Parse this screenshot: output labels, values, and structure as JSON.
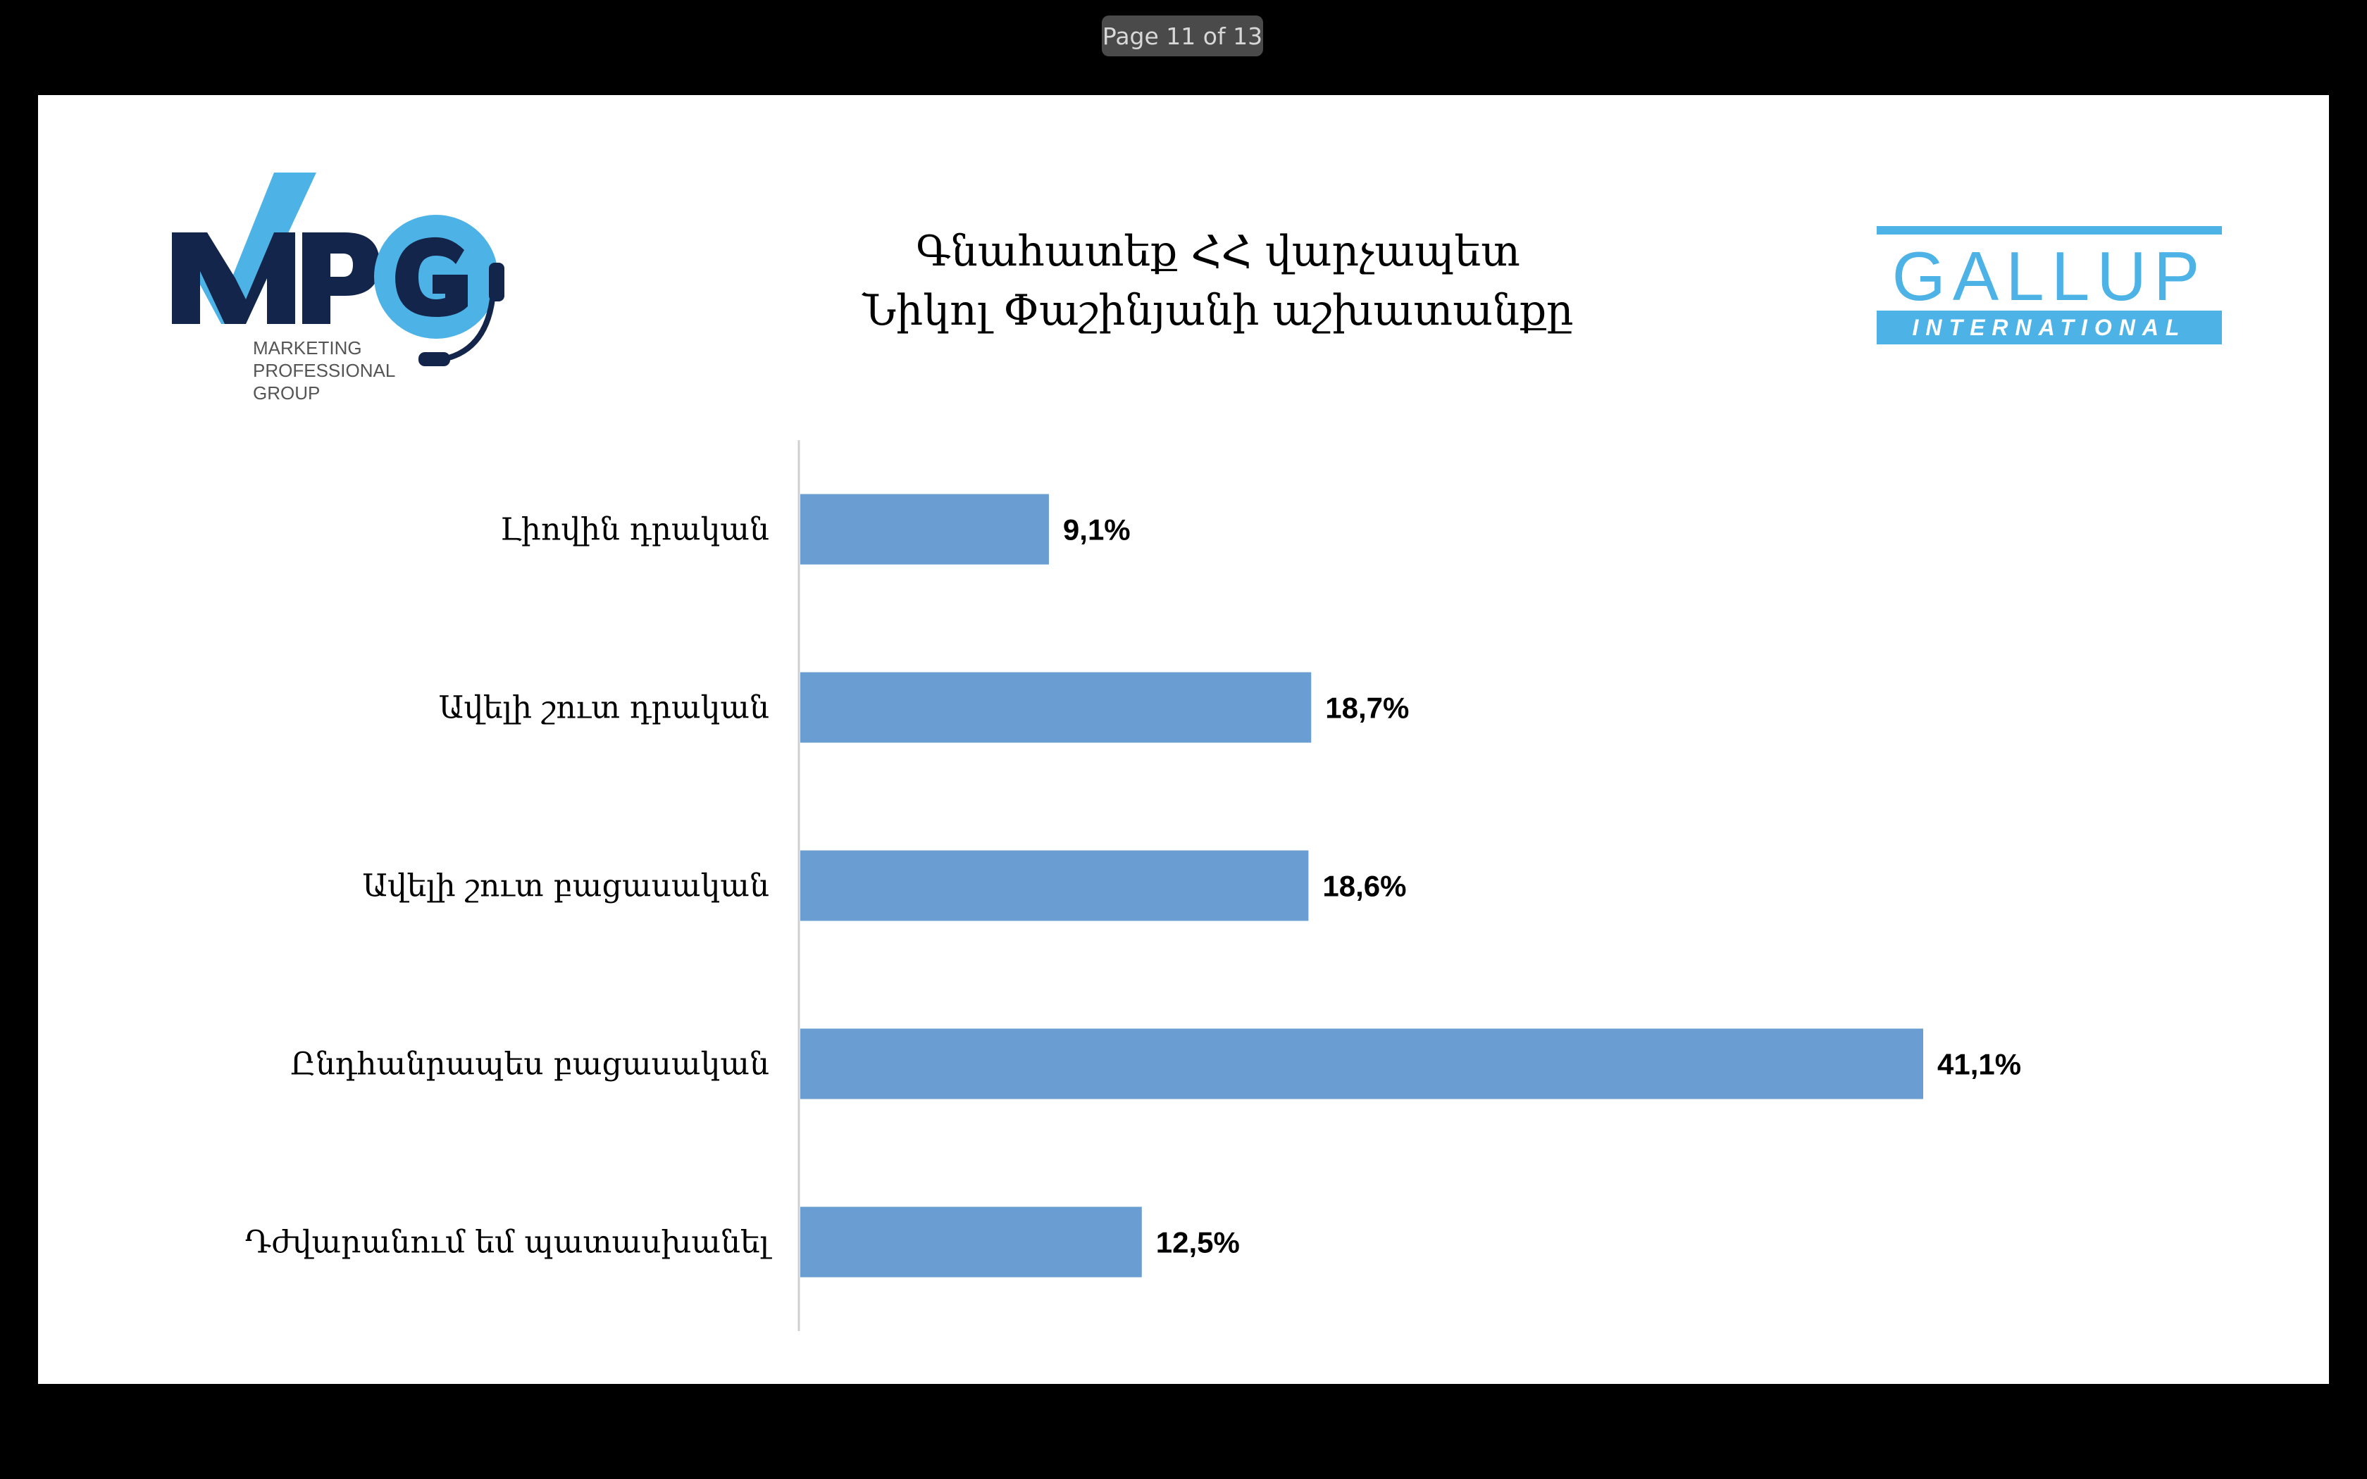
{
  "viewer": {
    "page_indicator": "Page 11 of 13"
  },
  "slide": {
    "title_line1": "Գնահատեք ՀՀ վարչապետ",
    "title_line2": "Նիկոլ Փաշինյանի աշխատանքը",
    "logo_left": {
      "text": "MPG",
      "subtitle_line1": "MARKETING",
      "subtitle_line2": "PROFESSIONAL",
      "subtitle_line3": "GROUP"
    },
    "logo_right": {
      "text": "GALLUP",
      "subtitle": "INTERNATIONAL"
    }
  },
  "colors": {
    "bar": "#6a9dd2",
    "mpg_dark": "#13254a",
    "mpg_light": "#4db3e6",
    "gallup": "#4db3e6"
  },
  "chart_data": {
    "type": "bar",
    "orientation": "horizontal",
    "categories": [
      "Լիովին դրական",
      "Ավելի շուտ դրական",
      "Ավելի շուտ բացասական",
      "Ընդհանրապես բացասական",
      "Դժվարանում եմ պատասխանել"
    ],
    "values": [
      9.1,
      18.7,
      18.6,
      41.1,
      12.5
    ],
    "value_labels": [
      "9,1%",
      "18,7%",
      "18,6%",
      "41,1%",
      "12,5%"
    ],
    "xlim": [
      0,
      45
    ],
    "grid": false,
    "legend": "none"
  }
}
